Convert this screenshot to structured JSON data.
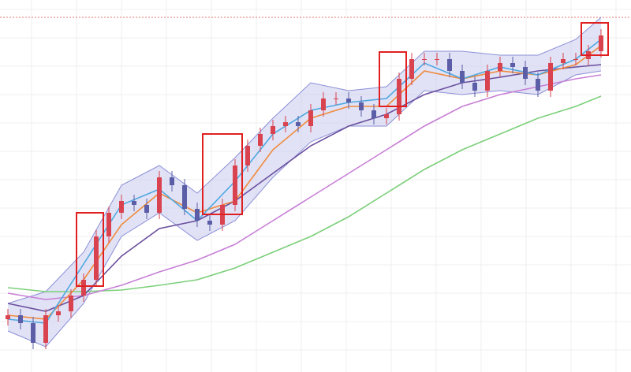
{
  "chart_data": {
    "type": "candlestick",
    "ylim": [
      0,
      472
    ],
    "up_color": "#d9434f",
    "down_color": "#5b5ea6",
    "grid": true,
    "reference_line": 450,
    "reference_color": "#e57373",
    "open": [
      67,
      72,
      62,
      37,
      72,
      77,
      97,
      117,
      172,
      202,
      217,
      212,
      202,
      247,
      237,
      207,
      192,
      187,
      212,
      262,
      287,
      302,
      312,
      317,
      312,
      332,
      347,
      347,
      342,
      332,
      322,
      327,
      372,
      397,
      397,
      397,
      382,
      367,
      357,
      382,
      392,
      387,
      372,
      357,
      392,
      397,
      397,
      407
    ],
    "high": [
      80,
      80,
      70,
      80,
      85,
      105,
      125,
      180,
      210,
      225,
      225,
      220,
      255,
      255,
      245,
      215,
      200,
      220,
      270,
      295,
      310,
      320,
      325,
      325,
      340,
      355,
      355,
      355,
      350,
      340,
      335,
      380,
      405,
      405,
      405,
      405,
      390,
      375,
      390,
      400,
      400,
      395,
      380,
      400,
      405,
      405,
      415,
      435
    ],
    "low": [
      59,
      54,
      29,
      29,
      64,
      69,
      89,
      109,
      164,
      194,
      204,
      194,
      194,
      229,
      199,
      184,
      179,
      179,
      204,
      254,
      279,
      294,
      304,
      304,
      304,
      324,
      339,
      334,
      324,
      314,
      314,
      319,
      364,
      389,
      389,
      374,
      359,
      349,
      349,
      374,
      379,
      364,
      349,
      349,
      384,
      389,
      389,
      399
    ],
    "close": [
      72,
      62,
      37,
      72,
      77,
      97,
      117,
      172,
      202,
      217,
      212,
      202,
      247,
      237,
      207,
      192,
      187,
      212,
      262,
      287,
      302,
      312,
      317,
      312,
      332,
      347,
      347,
      342,
      332,
      322,
      327,
      372,
      397,
      397,
      397,
      382,
      367,
      357,
      382,
      392,
      387,
      372,
      357,
      392,
      397,
      397,
      407,
      427
    ],
    "line_x": [
      0,
      3,
      6,
      9,
      12,
      15,
      18,
      21,
      24,
      27,
      30,
      33,
      36,
      39,
      42,
      45,
      47
    ],
    "band": {
      "fill": "#c9cbef",
      "stroke": "#8c90d6",
      "upper": [
        87,
        102,
        152,
        237,
        262,
        227,
        272,
        322,
        367,
        357,
        362,
        407,
        407,
        402,
        402,
        422,
        450
      ],
      "lower": [
        52,
        32,
        87,
        172,
        202,
        167,
        192,
        247,
        292,
        312,
        312,
        357,
        352,
        357,
        352,
        377,
        382
      ]
    },
    "lines": [
      {
        "color": "#7ccf7a",
        "values": [
          107,
          102,
          102,
          104,
          110,
          117,
          132,
          152,
          172,
          197,
          227,
          257,
          282,
          302,
          322,
          337,
          350
        ]
      },
      {
        "color": "#c77fd6",
        "values": [
          100,
          92,
          97,
          110,
          127,
          142,
          162,
          192,
          222,
          252,
          282,
          312,
          337,
          352,
          362,
          372,
          377
        ]
      },
      {
        "color": "#6a4f9e",
        "values": [
          87,
          77,
          97,
          147,
          182,
          192,
          217,
          252,
          287,
          312,
          327,
          352,
          367,
          374,
          382,
          387,
          390
        ]
      },
      {
        "color": "#f08a3c",
        "values": [
          72,
          67,
          117,
          187,
          227,
          202,
          217,
          282,
          322,
          337,
          337,
          382,
          372,
          382,
          377,
          390,
          414
        ]
      },
      {
        "color": "#4fa8e0",
        "values": [
          67,
          62,
          137,
          212,
          232,
          192,
          242,
          302,
          332,
          342,
          347,
          392,
          372,
          387,
          377,
          397,
          422
        ]
      }
    ],
    "highlight_color": "#e02020",
    "highlights": [
      {
        "from": 6,
        "to": 7,
        "top": 202,
        "bottom": 109
      },
      {
        "from": 16,
        "to": 18,
        "top": 302,
        "bottom": 200
      },
      {
        "from": 30,
        "to": 31,
        "top": 406,
        "bottom": 337
      },
      {
        "from": 46,
        "to": 47,
        "top": 443,
        "bottom": 402
      }
    ]
  }
}
